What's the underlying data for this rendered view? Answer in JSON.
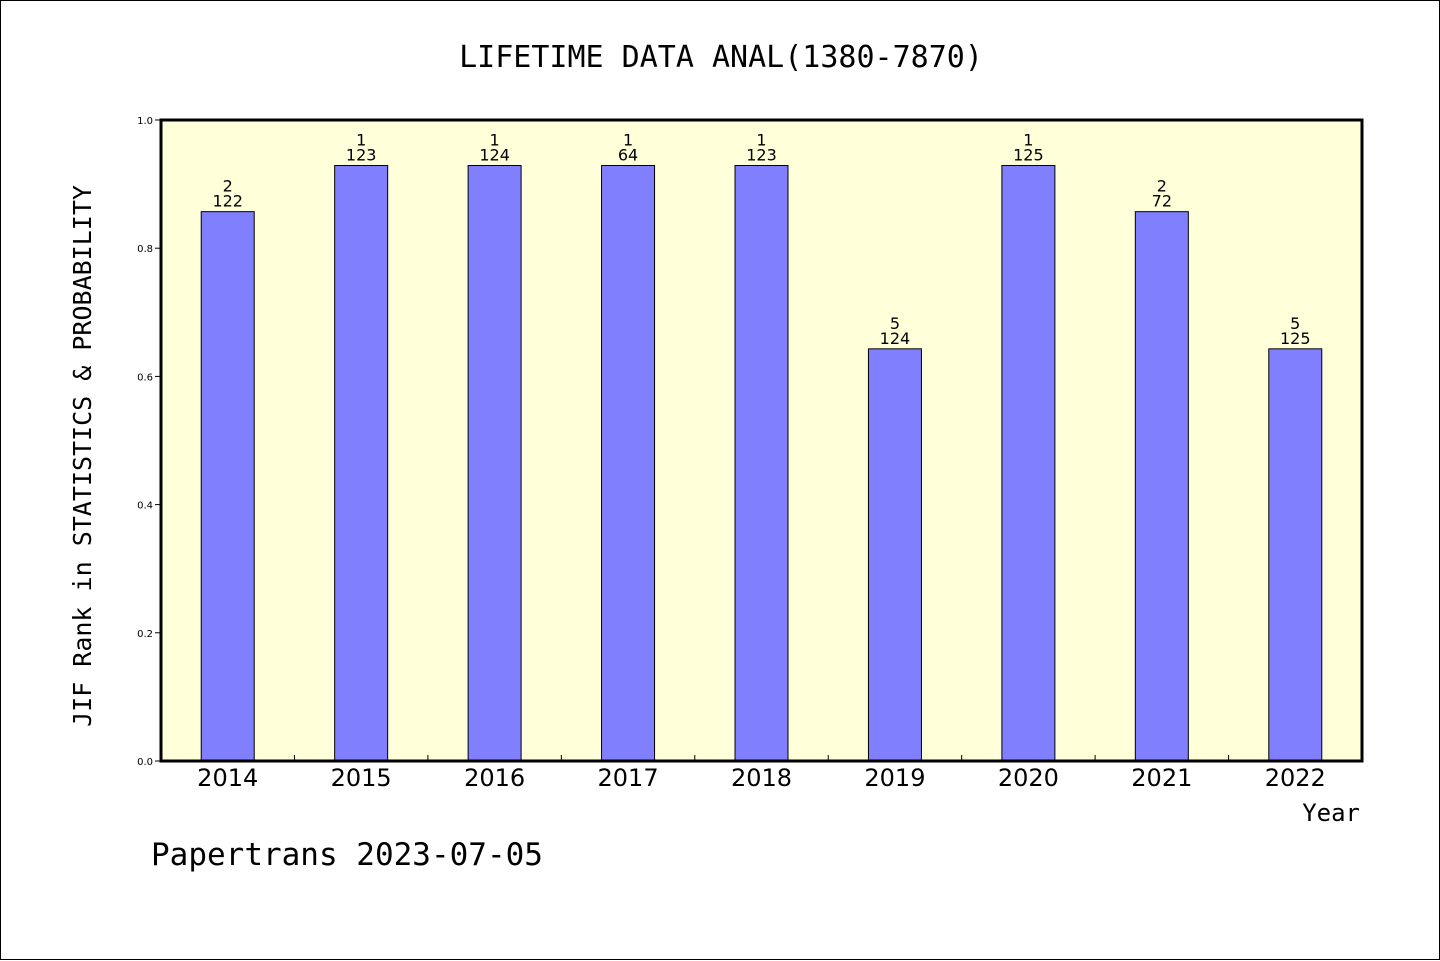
{
  "colors": {
    "plot_background": "#ffffd9",
    "bar_fill": "#8080ff",
    "bar_stroke": "#000000",
    "axis": "#000000"
  },
  "footer": "Papertrans 2023-07-05",
  "chart_data": {
    "type": "bar",
    "title": "LIFETIME DATA ANAL(1380-7870)",
    "xlabel": "Year",
    "ylabel": "JIF Rank in STATISTICS & PROBABILITY",
    "ylim": [
      0,
      1
    ],
    "yticks": [
      "0.0",
      "0.2",
      "0.4",
      "0.6",
      "0.8",
      "1.0"
    ],
    "grid": false,
    "categories": [
      "2014",
      "2015",
      "2016",
      "2017",
      "2018",
      "2019",
      "2020",
      "2021",
      "2022"
    ],
    "values": [
      0.857,
      0.929,
      0.929,
      0.929,
      0.929,
      0.643,
      0.929,
      0.857,
      0.643
    ],
    "rank_labels": [
      "2",
      "1",
      "1",
      "1",
      "1",
      "5",
      "1",
      "2",
      "5"
    ],
    "total_labels": [
      "122",
      "123",
      "124",
      "64",
      "123",
      "124",
      "125",
      "72",
      "125"
    ]
  }
}
